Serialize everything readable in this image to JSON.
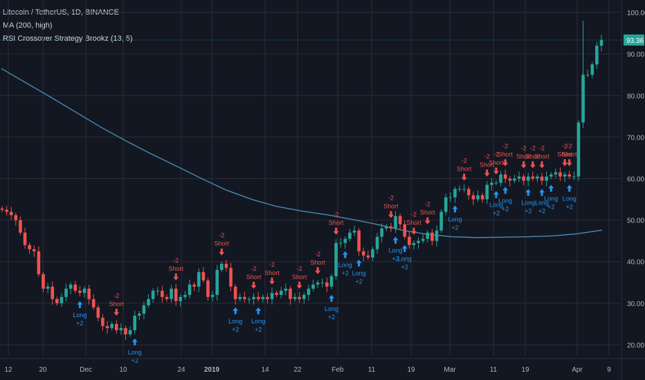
{
  "legend": {
    "symbol": "Litecoin / TetherUS, 1D, BINANCE",
    "ma": "MA (200, high)",
    "strategy": "RSI Crossover Strategy Brookz (13, 5)"
  },
  "chart_data": {
    "type": "candlestick",
    "y_axis": {
      "ticks": [
        20,
        30,
        40,
        50,
        60,
        70,
        80,
        90,
        100
      ],
      "tick_labels": [
        "20.00",
        "30.00",
        "40.00",
        "50.00",
        "60.00",
        "70.00",
        "80.00",
        "90.00",
        "100.00"
      ],
      "range": [
        17.5,
        103
      ],
      "scale": "linear"
    },
    "x_axis": {
      "ticks": [
        {
          "label": "12",
          "bold": false
        },
        {
          "label": "20",
          "bold": false
        },
        {
          "label": "Dec",
          "bold": false
        },
        {
          "label": "10",
          "bold": false
        },
        {
          "label": "24",
          "bold": false
        },
        {
          "label": "2019",
          "bold": true
        },
        {
          "label": "14",
          "bold": false
        },
        {
          "label": "22",
          "bold": false
        },
        {
          "label": "Feb",
          "bold": false
        },
        {
          "label": "11",
          "bold": false
        },
        {
          "label": "19",
          "bold": false
        },
        {
          "label": "Mar",
          "bold": false
        },
        {
          "label": "11",
          "bold": false
        },
        {
          "label": "19",
          "bold": false
        },
        {
          "label": "Apr",
          "bold": false
        },
        {
          "label": "9",
          "bold": false
        }
      ]
    },
    "last_price": "93.36",
    "series": [
      {
        "name": "MA (200, high)",
        "type": "line",
        "color": "#4a8bb5",
        "values": [
          86.5,
          83,
          79.5,
          75.9,
          72.3,
          69,
          65.9,
          63,
          60,
          57.2,
          55,
          53.3,
          52.2,
          51.3,
          50.2,
          49,
          47.6,
          46.6,
          46.0,
          45.8,
          45.9,
          46.0,
          46.2,
          46.7,
          47.6
        ]
      },
      {
        "name": "Litecoin / TetherUS",
        "type": "candlestick",
        "up_color": "#26a69a",
        "down_color": "#ef5350",
        "closes": [
          52.5,
          52,
          51.2,
          50,
          47,
          44,
          43,
          42.5,
          37,
          33.5,
          34,
          31,
          30,
          31.5,
          33.5,
          34.5,
          33,
          32.5,
          33.5,
          31,
          29,
          26.5,
          24.5,
          24,
          25,
          23.5,
          24,
          22.5,
          23.5,
          27,
          27.5,
          29.5,
          31,
          33,
          33,
          31.5,
          31,
          33.5,
          30.5,
          31.5,
          32,
          34.5,
          34,
          37.5,
          35.5,
          31.5,
          32,
          38,
          39.5,
          38.5,
          34,
          31,
          31.5,
          31,
          31,
          31.5,
          31,
          31.5,
          31,
          32.5,
          32,
          33,
          33.5,
          31,
          31.5,
          31,
          32,
          33.5,
          34.5,
          35,
          35,
          34,
          36.5,
          44.5,
          44.5,
          45.5,
          47,
          47.5,
          42.5,
          41.5,
          41,
          43,
          46,
          48,
          48.5,
          48,
          51,
          49,
          46,
          44,
          44.5,
          45,
          45.5,
          47,
          45,
          47.5,
          52,
          55.5,
          55.5,
          57.5,
          57.5,
          57.5,
          56,
          55,
          56,
          55,
          58.5,
          59,
          59,
          61,
          60,
          59.5,
          60,
          60.5,
          59.5,
          60.5,
          60,
          60.5,
          59.5,
          60.5,
          61,
          61.5,
          60.5,
          61,
          60.5,
          60.5,
          73.5,
          85,
          85,
          87.5,
          92,
          93.4
        ]
      }
    ],
    "signals": [
      {
        "label": "Long",
        "qty": "+2",
        "side": "long"
      },
      {
        "label": "Short",
        "qty": "-2",
        "side": "short"
      }
    ],
    "grid": true
  }
}
